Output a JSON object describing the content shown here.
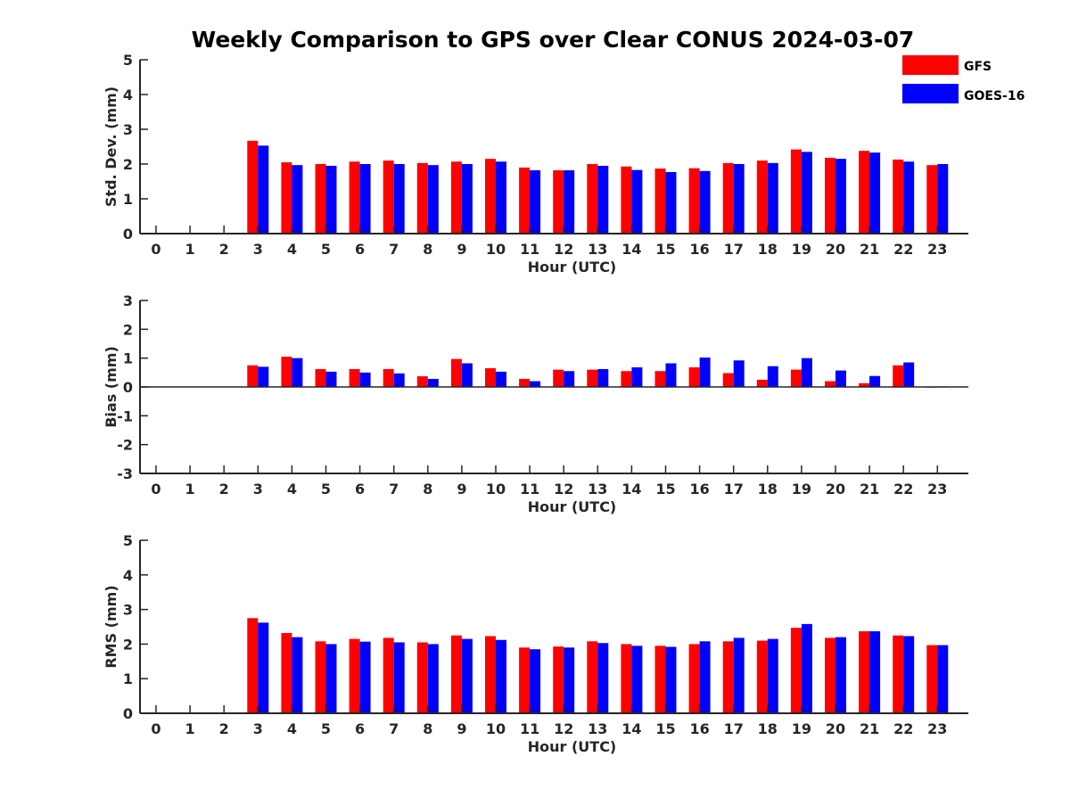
{
  "title": "Weekly Comparison to GPS over Clear CONUS 2024-03-07",
  "legend": [
    {
      "name": "GFS",
      "color": "#ff0000"
    },
    {
      "name": "GOES-16",
      "color": "#0000ff"
    }
  ],
  "chart_data": [
    {
      "type": "bar",
      "ylabel": "Std. Dev. (mm)",
      "xlabel": "Hour (UTC)",
      "categories": [
        "0",
        "1",
        "2",
        "3",
        "4",
        "5",
        "6",
        "7",
        "8",
        "9",
        "10",
        "11",
        "12",
        "13",
        "14",
        "15",
        "16",
        "17",
        "18",
        "19",
        "20",
        "21",
        "22",
        "23"
      ],
      "ylim": [
        0,
        5
      ],
      "yticks": [
        0,
        1,
        2,
        3,
        4,
        5
      ],
      "series": [
        {
          "name": "GFS",
          "color": "#ff0000",
          "values": [
            null,
            null,
            null,
            2.67,
            2.05,
            2.0,
            2.07,
            2.1,
            2.03,
            2.07,
            2.15,
            1.9,
            1.82,
            2.0,
            1.93,
            1.87,
            1.88,
            2.03,
            2.1,
            2.42,
            2.18,
            2.38,
            2.13,
            1.97
          ]
        },
        {
          "name": "GOES-16",
          "color": "#0000ff",
          "values": [
            null,
            null,
            null,
            2.53,
            1.97,
            1.95,
            2.0,
            2.0,
            1.97,
            2.0,
            2.07,
            1.82,
            1.82,
            1.95,
            1.83,
            1.77,
            1.8,
            2.0,
            2.03,
            2.35,
            2.15,
            2.33,
            2.07,
            2.0
          ]
        }
      ]
    },
    {
      "type": "bar",
      "ylabel": "Bias (mm)",
      "xlabel": "Hour (UTC)",
      "categories": [
        "0",
        "1",
        "2",
        "3",
        "4",
        "5",
        "6",
        "7",
        "8",
        "9",
        "10",
        "11",
        "12",
        "13",
        "14",
        "15",
        "16",
        "17",
        "18",
        "19",
        "20",
        "21",
        "22",
        "23"
      ],
      "ylim": [
        -3,
        3
      ],
      "yticks": [
        -3,
        -2,
        -1,
        0,
        1,
        2,
        3
      ],
      "series": [
        {
          "name": "GFS",
          "color": "#ff0000",
          "values": [
            null,
            null,
            null,
            0.75,
            1.05,
            0.62,
            0.62,
            0.62,
            0.37,
            0.97,
            0.65,
            0.28,
            0.6,
            0.6,
            0.55,
            0.55,
            0.68,
            0.48,
            0.25,
            0.6,
            0.2,
            0.13,
            0.75,
            0.0
          ]
        },
        {
          "name": "GOES-16",
          "color": "#0000ff",
          "values": [
            null,
            null,
            null,
            0.7,
            1.0,
            0.53,
            0.5,
            0.47,
            0.28,
            0.82,
            0.53,
            0.2,
            0.55,
            0.62,
            0.68,
            0.82,
            1.02,
            0.92,
            0.72,
            1.0,
            0.57,
            0.38,
            0.85,
            0.02
          ]
        }
      ]
    },
    {
      "type": "bar",
      "ylabel": "RMS (mm)",
      "xlabel": "Hour (UTC)",
      "categories": [
        "0",
        "1",
        "2",
        "3",
        "4",
        "5",
        "6",
        "7",
        "8",
        "9",
        "10",
        "11",
        "12",
        "13",
        "14",
        "15",
        "16",
        "17",
        "18",
        "19",
        "20",
        "21",
        "22",
        "23"
      ],
      "ylim": [
        0,
        5
      ],
      "yticks": [
        0,
        1,
        2,
        3,
        4,
        5
      ],
      "series": [
        {
          "name": "GFS",
          "color": "#ff0000",
          "values": [
            null,
            null,
            null,
            2.75,
            2.32,
            2.08,
            2.15,
            2.18,
            2.05,
            2.25,
            2.23,
            1.9,
            1.93,
            2.08,
            2.0,
            1.95,
            2.0,
            2.08,
            2.1,
            2.47,
            2.18,
            2.37,
            2.25,
            1.97
          ]
        },
        {
          "name": "GOES-16",
          "color": "#0000ff",
          "values": [
            null,
            null,
            null,
            2.62,
            2.2,
            2.0,
            2.07,
            2.05,
            2.0,
            2.15,
            2.12,
            1.85,
            1.9,
            2.03,
            1.95,
            1.92,
            2.08,
            2.18,
            2.15,
            2.58,
            2.2,
            2.37,
            2.23,
            1.97
          ]
        }
      ]
    }
  ]
}
